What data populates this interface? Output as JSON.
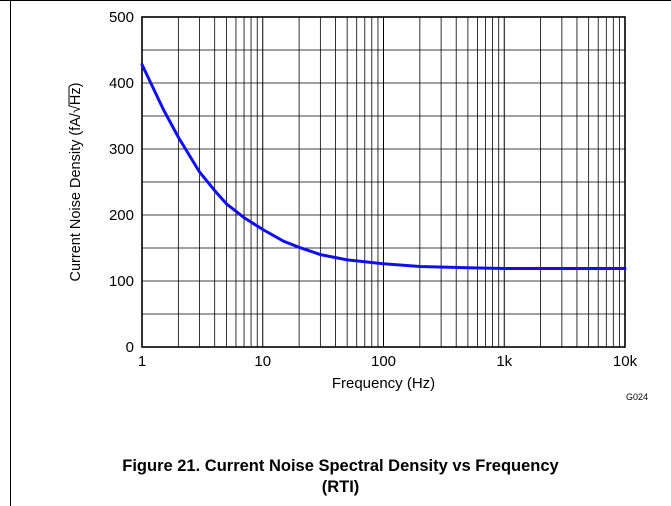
{
  "figure_code": "G024",
  "caption": {
    "line1": "Figure 21. Current Noise Spectral Density vs Frequency",
    "line2": "(RTI)"
  },
  "chart_data": {
    "type": "line",
    "title": "",
    "xlabel": "Frequency (Hz)",
    "ylabel_prefix": "Current Noise Density (fA/",
    "ylabel_radicand": "Hz",
    "ylabel_suffix": ")",
    "xscale": "log",
    "xlim": [
      1,
      10000
    ],
    "ylim": [
      0,
      500
    ],
    "grid": true,
    "x_ticks": [
      {
        "value": 1,
        "label": "1"
      },
      {
        "value": 10,
        "label": "10"
      },
      {
        "value": 100,
        "label": "100"
      },
      {
        "value": 1000,
        "label": "1k"
      },
      {
        "value": 10000,
        "label": "10k"
      }
    ],
    "y_ticks": [
      {
        "value": 0,
        "label": "0"
      },
      {
        "value": 100,
        "label": "100"
      },
      {
        "value": 200,
        "label": "200"
      },
      {
        "value": 300,
        "label": "300"
      },
      {
        "value": 400,
        "label": "400"
      },
      {
        "value": 500,
        "label": "500"
      }
    ],
    "y_minor_step": 50,
    "series": [
      {
        "color": "#1010ee",
        "x": [
          1,
          1.5,
          2,
          3,
          4,
          5,
          7,
          10,
          15,
          20,
          30,
          50,
          100,
          200,
          500,
          1000,
          2000,
          5000,
          10000
        ],
        "y": [
          428,
          360,
          318,
          265,
          237,
          217,
          196,
          178,
          160,
          151,
          140,
          132,
          126,
          122,
          120,
          119,
          119,
          119,
          119
        ]
      }
    ]
  }
}
